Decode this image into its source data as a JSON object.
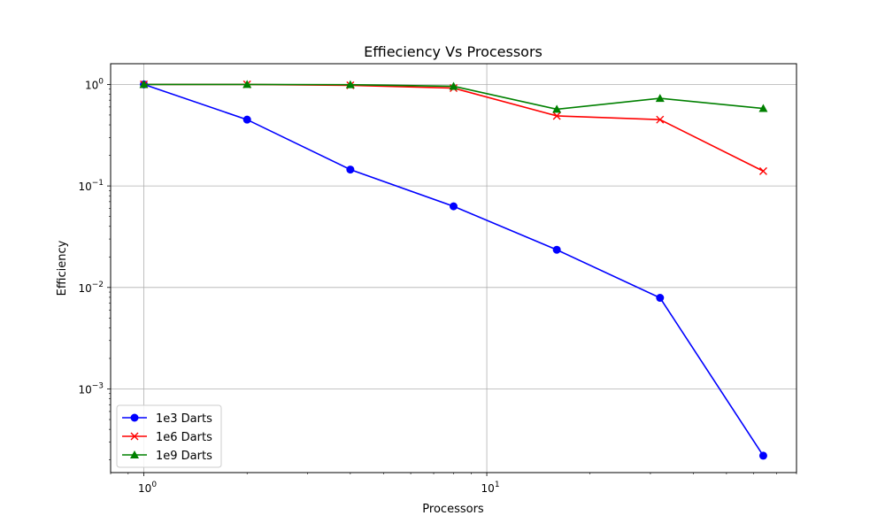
{
  "chart_data": {
    "type": "line",
    "title": "Effieciency Vs Processors",
    "xlabel": "Processors",
    "ylabel": "Efficiency",
    "xscale": "log",
    "yscale": "log",
    "xlim": [
      0.8,
      80
    ],
    "ylim": [
      0.00015,
      1.6
    ],
    "grid": true,
    "legend_position": "lower-left",
    "x": [
      1,
      2,
      4,
      8,
      16,
      32,
      64
    ],
    "x_ticks": [
      {
        "value": 1,
        "base": "10",
        "exp": "0"
      },
      {
        "value": 10,
        "base": "10",
        "exp": "1"
      }
    ],
    "y_ticks": [
      {
        "value": 1,
        "base": "10",
        "exp": "0"
      },
      {
        "value": 0.1,
        "base": "10",
        "exp": "−1"
      },
      {
        "value": 0.01,
        "base": "10",
        "exp": "−2"
      },
      {
        "value": 0.001,
        "base": "10",
        "exp": "−3"
      }
    ],
    "series": [
      {
        "name": "1e3 Darts",
        "color": "#0000ff",
        "marker": "circle",
        "values": [
          1.0,
          0.45,
          0.145,
          0.063,
          0.0235,
          0.0079,
          0.00022
        ]
      },
      {
        "name": "1e6 Darts",
        "color": "#ff0000",
        "marker": "x",
        "values": [
          1.0,
          1.0,
          0.98,
          0.92,
          0.49,
          0.45,
          0.14
        ]
      },
      {
        "name": "1e9 Darts",
        "color": "#008000",
        "marker": "triangle",
        "values": [
          1.0,
          1.0,
          0.995,
          0.96,
          0.57,
          0.73,
          0.58
        ]
      }
    ]
  }
}
